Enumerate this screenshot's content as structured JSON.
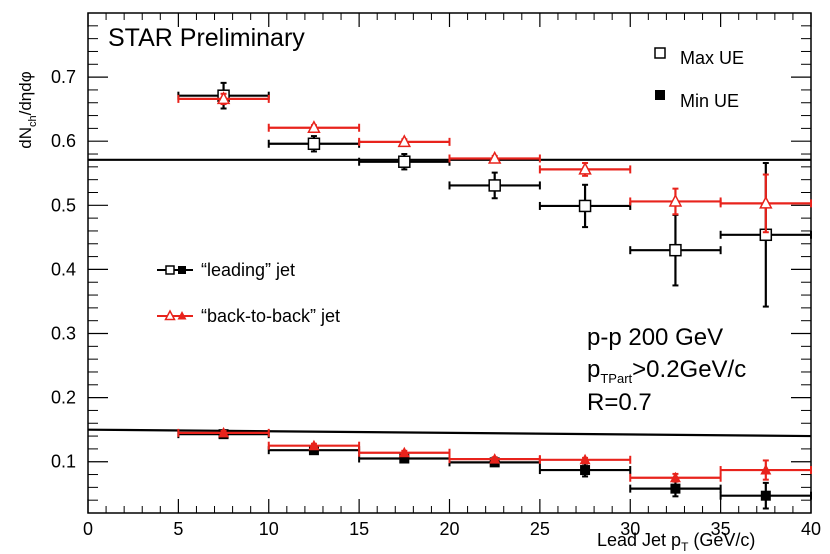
{
  "chart_data": {
    "type": "scatter",
    "title": "STAR Preliminary",
    "xlabel": {
      "main": "Lead Jet p",
      "sub": "T",
      "unit": " (GeV/c)"
    },
    "ylabel": {
      "parts": [
        "dN",
        "ch",
        "/d",
        "η",
        "d",
        "φ"
      ]
    },
    "xlim": [
      0,
      40
    ],
    "ylim": [
      0.02,
      0.8
    ],
    "x_ticks": [
      0,
      5,
      10,
      15,
      20,
      25,
      30,
      35,
      40
    ],
    "y_ticks": [
      0.1,
      0.2,
      0.3,
      0.4,
      0.5,
      0.6,
      0.7
    ],
    "annotations": {
      "line1": "p-p 200 GeV",
      "line2_main": "p",
      "line2_sub": "TPart",
      "line2_rest": ">0.2GeV/c",
      "line3": "R=0.7"
    },
    "legend_markers": {
      "max": "Max UE",
      "min": "Min UE"
    },
    "legend_jets": {
      "leading": "“leading” jet",
      "b2b": "“back-to-back” jet"
    },
    "colors": {
      "leading": "#000000",
      "b2b": "#e8231c"
    },
    "series": [
      {
        "name": "“leading” jet",
        "set": "Max UE",
        "color": "#000000",
        "marker": "open-square",
        "x": [
          7.5,
          12.5,
          17.5,
          22.5,
          27.5,
          32.5,
          37.5
        ],
        "x_err": [
          2.5,
          2.5,
          2.5,
          2.5,
          2.5,
          2.5,
          2.5
        ],
        "y": [
          0.671,
          0.596,
          0.568,
          0.531,
          0.499,
          0.43,
          0.454
        ],
        "y_err": [
          0.02,
          0.012,
          0.012,
          0.02,
          0.033,
          0.055,
          0.112
        ]
      },
      {
        "name": "“back-to-back” jet",
        "set": "Max UE",
        "color": "#e8231c",
        "marker": "open-triangle",
        "x": [
          7.5,
          12.5,
          17.5,
          22.5,
          27.5,
          32.5,
          37.5
        ],
        "x_err": [
          2.5,
          2.5,
          2.5,
          2.5,
          2.5,
          2.5,
          2.5
        ],
        "y": [
          0.666,
          0.621,
          0.599,
          0.573,
          0.556,
          0.506,
          0.503
        ],
        "y_err": [
          0.008,
          0.004,
          0.004,
          0.004,
          0.01,
          0.02,
          0.045
        ]
      },
      {
        "name": "“leading” jet",
        "set": "Min UE",
        "color": "#000000",
        "marker": "filled-square",
        "x": [
          7.5,
          12.5,
          17.5,
          22.5,
          27.5,
          32.5,
          37.5
        ],
        "x_err": [
          2.5,
          2.5,
          2.5,
          2.5,
          2.5,
          2.5,
          2.5
        ],
        "y": [
          0.143,
          0.118,
          0.105,
          0.099,
          0.087,
          0.058,
          0.047
        ],
        "y_err": [
          0.004,
          0.004,
          0.004,
          0.004,
          0.01,
          0.012,
          0.02
        ]
      },
      {
        "name": "“back-to-back” jet",
        "set": "Min UE",
        "color": "#e8231c",
        "marker": "filled-triangle",
        "x": [
          7.5,
          12.5,
          17.5,
          22.5,
          27.5,
          32.5,
          37.5
        ],
        "x_err": [
          2.5,
          2.5,
          2.5,
          2.5,
          2.5,
          2.5,
          2.5
        ],
        "y": [
          0.145,
          0.125,
          0.114,
          0.104,
          0.103,
          0.075,
          0.087
        ],
        "y_err": [
          0.003,
          0.003,
          0.003,
          0.003,
          0.003,
          0.006,
          0.015
        ]
      }
    ],
    "reference_lines": [
      {
        "y_start": 0.571,
        "y_end": 0.571
      },
      {
        "y_start": 0.15,
        "y_end": 0.14
      }
    ]
  }
}
